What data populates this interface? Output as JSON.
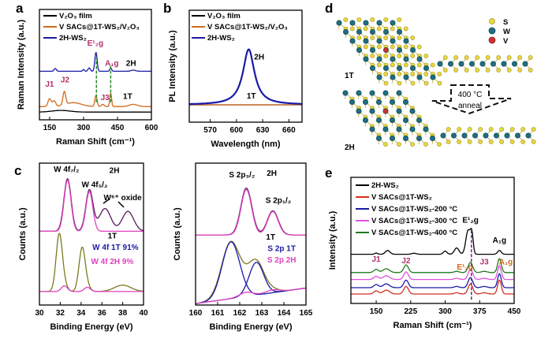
{
  "panel_labels": [
    "a",
    "b",
    "c",
    "d",
    "e"
  ],
  "chart_data": [
    {
      "id": "a",
      "type": "line",
      "xlabel": "Raman Shift (cm⁻¹)",
      "ylabel": "Raman Intensity (a.u.)",
      "xlim": [
        105,
        600
      ],
      "ylim": [
        0,
        10
      ],
      "xticks": [
        150,
        300,
        450,
        600
      ],
      "legend": [
        {
          "label": "V₂O₃ film",
          "color": "#000000"
        },
        {
          "label": "V SACs@1T-WS₂/V₂O₃",
          "color": "#d2691e"
        },
        {
          "label": "2H-WS₂",
          "color": "#1a1aa8"
        }
      ],
      "series": [
        {
          "name": "V₂O₃ film",
          "color": "#000000",
          "offset": 0.7,
          "peaks": [
            [
              200,
              0.15,
              40
            ]
          ]
        },
        {
          "name": "V SACs@1T-WS₂/V₂O₃",
          "color": "#d2691e",
          "offset": 1.2,
          "peaks": [
            [
              150,
              0.7,
              7
            ],
            [
              170,
              0.5,
              7
            ],
            [
              215,
              1.2,
              6
            ],
            [
              255,
              0.35,
              35
            ],
            [
              355,
              1.0,
              5
            ],
            [
              385,
              0.2,
              6
            ],
            [
              420,
              1.2,
              4
            ],
            [
              520,
              0.2,
              18
            ]
          ]
        },
        {
          "name": "2H-WS₂",
          "color": "#1a1aa8",
          "offset": 4.4,
          "peaks": [
            [
              175,
              0.25,
              5
            ],
            [
              300,
              0.15,
              4
            ],
            [
              325,
              0.3,
              5
            ],
            [
              355,
              1.7,
              5
            ],
            [
              420,
              0.3,
              4
            ],
            [
              520,
              0.1,
              10
            ]
          ]
        }
      ],
      "vlines": [
        {
          "x": 357,
          "y": [
            1.6,
            5.6
          ],
          "color": "#2a8a2a"
        },
        {
          "x": 420,
          "y": [
            1.6,
            5.0
          ],
          "color": "#2a8a2a"
        }
      ],
      "annotations": [
        {
          "text": "E¹₂g",
          "x": 352,
          "y": 6.7,
          "color": "#b0306a"
        },
        {
          "text": "A₁g",
          "x": 425,
          "y": 4.9,
          "color": "#b0306a"
        },
        {
          "text": "2H",
          "x": 510,
          "y": 4.9,
          "color": "#000000"
        },
        {
          "text": "J1",
          "x": 150,
          "y": 3.0,
          "color": "#b0306a"
        },
        {
          "text": "J2",
          "x": 218,
          "y": 3.4,
          "color": "#b0306a"
        },
        {
          "text": "J3",
          "x": 395,
          "y": 1.8,
          "color": "#b0306a"
        },
        {
          "text": "1T",
          "x": 495,
          "y": 1.9,
          "color": "#000000"
        }
      ]
    },
    {
      "id": "b",
      "type": "line",
      "xlabel": "Wavelength (nm)",
      "ylabel": "PL Intensity (a.u.)",
      "xlim": [
        546,
        675
      ],
      "ylim": [
        0,
        10
      ],
      "xticks": [
        570,
        600,
        630,
        660
      ],
      "legend": [
        {
          "label": "V₂O₃ film",
          "color": "#000000"
        },
        {
          "label": "V SACs@1T-WS₂/V₂O₃",
          "color": "#d2691e"
        },
        {
          "label": "2H-WS₂",
          "color": "#1a1aa8"
        }
      ],
      "series": [
        {
          "name": "V₂O₃ film",
          "color": "#000000",
          "offset": 1.55,
          "peaks": []
        },
        {
          "name": "V SACs@1T-WS₂/V₂O₃",
          "color": "#d2691e",
          "offset": 1.55,
          "peaks": []
        },
        {
          "name": "2H-WS₂",
          "color": "#1a1aa8",
          "offset": 1.55,
          "lorentz": [
            [
              614,
              4.95,
              8
            ]
          ]
        }
      ],
      "annotations": [
        {
          "text": "2H",
          "x": 626,
          "y": 5.6,
          "color": "#000000"
        },
        {
          "text": "1T",
          "x": 617,
          "y": 2.1,
          "color": "#000000"
        }
      ]
    },
    {
      "id": "c-w4f",
      "type": "line",
      "xlabel": "Binding Energy (eV)",
      "ylabel": "Counts (a.u.)",
      "xlim": [
        30,
        40
      ],
      "ylim": [
        0,
        10
      ],
      "xticks": [
        30,
        32,
        34,
        36,
        38,
        40
      ],
      "series": [
        {
          "name": "2H fit",
          "color": "#5a1a5a",
          "offset": 5.2,
          "peaks": [
            [
              32.7,
              3.7,
              0.35
            ],
            [
              34.8,
              2.9,
              0.35
            ],
            [
              36.3,
              1.6,
              0.55
            ],
            [
              38.5,
              1.4,
              0.55
            ]
          ]
        },
        {
          "name": "2H W4f components",
          "color": "#e040c0",
          "offset": 5.2,
          "peaks": [
            [
              32.7,
              3.6,
              0.33
            ],
            [
              34.8,
              2.8,
              0.33
            ]
          ]
        },
        {
          "name": "1T fit",
          "color": "#7a7a20",
          "offset": 0.95,
          "peaks": [
            [
              31.9,
              4.0,
              0.3
            ],
            [
              34.1,
              3.05,
              0.3
            ],
            [
              32.4,
              0.4,
              0.3
            ],
            [
              34.6,
              0.3,
              0.3
            ],
            [
              38.0,
              0.45,
              0.8
            ]
          ]
        },
        {
          "name": "W 4f 2H 9%",
          "color": "#e040c0",
          "offset": 0.95,
          "peaks": [
            [
              32.4,
              0.4,
              0.3
            ],
            [
              34.6,
              0.3,
              0.3
            ]
          ]
        }
      ],
      "annotations": [
        {
          "text": "W 4f₇/₂",
          "x": 32.6,
          "y": 9.4,
          "color": "#000000"
        },
        {
          "text": "W 4f₅/₂",
          "x": 35.3,
          "y": 8.3,
          "color": "#000000"
        },
        {
          "text": "2H",
          "x": 37.2,
          "y": 9.3,
          "color": "#000000"
        },
        {
          "text": "W⁶⁺ oxide",
          "x": 38.0,
          "y": 7.4,
          "color": "#000000"
        },
        {
          "text": "1T",
          "x": 37.0,
          "y": 4.7,
          "color": "#000000"
        },
        {
          "text": "W 4f 1T 91%",
          "x": 37.3,
          "y": 3.9,
          "color": "#1a1aa8"
        },
        {
          "text": "W 4f 2H 9%",
          "x": 37.0,
          "y": 2.9,
          "color": "#e040c0"
        }
      ]
    },
    {
      "id": "c-s2p",
      "type": "line",
      "xlabel": "Binding Energy (eV)",
      "ylabel": "Counts (a.u.)",
      "xlim": [
        160,
        165
      ],
      "ylim": [
        0,
        10
      ],
      "xticks": [
        160,
        161,
        162,
        163,
        164,
        165
      ],
      "series": [
        {
          "name": "2H fit",
          "color": "#5a1a5a",
          "offset": 4.94,
          "peaks": [
            [
              162.3,
              3.3,
              0.25
            ],
            [
              163.5,
              1.7,
              0.25
            ]
          ]
        },
        {
          "name": "2H components",
          "color": "#e040c0",
          "offset": 4.94,
          "peaks": [
            [
              162.3,
              3.2,
              0.24
            ],
            [
              163.5,
              1.65,
              0.24
            ]
          ]
        },
        {
          "name": "1T fit",
          "color": "#7a7a20",
          "offset": 0.1,
          "slope": 0.22,
          "peaks": [
            [
              161.6,
              4.0,
              0.42
            ],
            [
              162.75,
              2.3,
              0.35
            ],
            [
              162.3,
              0.3,
              0.3
            ],
            [
              163.5,
              0.2,
              0.3
            ]
          ]
        },
        {
          "name": "S 2p 1T",
          "color": "#1a1aa8",
          "offset": 0.1,
          "slope": 0.22,
          "peaks": [
            [
              161.6,
              4.0,
              0.4
            ]
          ]
        },
        {
          "name": "S 2p 1T b",
          "color": "#1a1aa8",
          "offset": 0.1,
          "slope": 0.22,
          "peaks": [
            [
              162.75,
              2.3,
              0.33
            ]
          ]
        },
        {
          "name": "S 2p 2H",
          "color": "#e040c0",
          "offset": 0.1,
          "slope": 0.22,
          "peaks": [
            [
              162.3,
              0.3,
              0.3
            ],
            [
              163.5,
              0.2,
              0.3
            ]
          ]
        }
      ],
      "annotations": [
        {
          "text": "S 2p₃/₂",
          "x": 162.1,
          "y": 9.0,
          "color": "#000000"
        },
        {
          "text": "2H",
          "x": 163.45,
          "y": 9.1,
          "color": "#000000"
        },
        {
          "text": "S 2p₁/₂",
          "x": 163.75,
          "y": 7.2,
          "color": "#000000"
        },
        {
          "text": "1T",
          "x": 163.4,
          "y": 4.6,
          "color": "#000000"
        },
        {
          "text": "S 2p 1T",
          "x": 163.9,
          "y": 3.8,
          "color": "#1a1aa8"
        },
        {
          "text": "S 2p 2H",
          "x": 163.9,
          "y": 3.0,
          "color": "#e040c0"
        }
      ]
    },
    {
      "id": "e",
      "type": "line",
      "xlabel": "Raman Shift (cm⁻¹)",
      "ylabel": "Intensity (a.u.)",
      "xlim": [
        95,
        450
      ],
      "ylim": [
        0,
        10
      ],
      "xticks": [
        150,
        225,
        300,
        375,
        450
      ],
      "legend": [
        {
          "label": "2H-WS₂",
          "color": "#000000"
        },
        {
          "label": "V SACs@1T-WS₂",
          "color": "#d03020"
        },
        {
          "label": "V SACs@1T-WS₂-200 °C",
          "color": "#1a1aa8"
        },
        {
          "label": "V SACs@1T-WS₂-300 °C",
          "color": "#e050e0"
        },
        {
          "label": "V SACs@1T-WS₂-400 °C",
          "color": "#1f7a1f"
        }
      ],
      "series": [
        {
          "name": "2H-WS₂",
          "color": "#000000",
          "offset": 3.9,
          "peaks": [
            [
              150,
              0.1,
              3
            ],
            [
              175,
              0.3,
              5
            ],
            [
              232,
              0.08,
              5
            ],
            [
              300,
              0.25,
              4
            ],
            [
              325,
              0.5,
              5
            ],
            [
              350,
              1.9,
              5
            ],
            [
              358,
              1.4,
              3
            ],
            [
              418,
              0.3,
              4
            ]
          ]
        },
        {
          "name": "V SACs@1T-WS₂",
          "color": "#d03020",
          "offset": 0.75,
          "peaks": [
            [
              150,
              0.25,
              5
            ],
            [
              172,
              0.3,
              7
            ],
            [
              215,
              0.6,
              5
            ],
            [
              325,
              0.1,
              5
            ],
            [
              355,
              0.8,
              5
            ],
            [
              385,
              0.1,
              6
            ],
            [
              418,
              1.1,
              4
            ]
          ]
        },
        {
          "name": "V SACs@1T-WS₂-200 °C",
          "color": "#1a1aa8",
          "offset": 1.25,
          "peaks": [
            [
              150,
              0.25,
              5
            ],
            [
              172,
              0.3,
              7
            ],
            [
              215,
              0.6,
              5
            ],
            [
              325,
              0.1,
              5
            ],
            [
              355,
              0.8,
              5
            ],
            [
              385,
              0.1,
              6
            ],
            [
              418,
              1.1,
              4
            ]
          ]
        },
        {
          "name": "V SACs@1T-WS₂-300 °C",
          "color": "#e050e0",
          "offset": 1.9,
          "peaks": [
            [
              150,
              0.25,
              5
            ],
            [
              172,
              0.3,
              7
            ],
            [
              215,
              0.6,
              5
            ],
            [
              325,
              0.1,
              5
            ],
            [
              355,
              0.8,
              5
            ],
            [
              385,
              0.1,
              6
            ],
            [
              418,
              1.1,
              4
            ]
          ]
        },
        {
          "name": "V SACs@1T-WS₂-400 °C",
          "color": "#1f7a1f",
          "offset": 2.45,
          "peaks": [
            [
              150,
              0.25,
              5
            ],
            [
              172,
              0.3,
              7
            ],
            [
              215,
              0.6,
              5
            ],
            [
              325,
              0.1,
              5
            ],
            [
              355,
              0.8,
              5
            ],
            [
              385,
              0.1,
              6
            ],
            [
              418,
              1.1,
              4
            ]
          ]
        }
      ],
      "vlines": [
        {
          "x": 357,
          "y": [
            0.3,
            5.8
          ],
          "color": "#6a2a7a"
        }
      ],
      "annotations": [
        {
          "text": "E¹₂g",
          "x": 355,
          "y": 6.4,
          "color": "#000000"
        },
        {
          "text": "A₁g",
          "x": 418,
          "y": 4.8,
          "color": "#000000"
        },
        {
          "text": "J1",
          "x": 150,
          "y": 3.3,
          "color": "#b0306a"
        },
        {
          "text": "J2",
          "x": 215,
          "y": 3.2,
          "color": "#b0306a"
        },
        {
          "text": "E¹₂g",
          "x": 343,
          "y": 2.7,
          "color": "#d2691e"
        },
        {
          "text": "J3",
          "x": 385,
          "y": 3.1,
          "color": "#b0306a"
        },
        {
          "text": "A₁g",
          "x": 432,
          "y": 3.1,
          "color": "#d2691e"
        }
      ]
    }
  ],
  "diagram_d": {
    "legend": [
      {
        "label": "S",
        "color": "#e8d840"
      },
      {
        "label": "W",
        "color": "#1f6f7f"
      },
      {
        "label": "V",
        "color": "#d03030"
      }
    ],
    "phase_top": "1T",
    "phase_bottom": "2H",
    "arrow_line1": "400 °C",
    "arrow_line2": "anneal"
  }
}
